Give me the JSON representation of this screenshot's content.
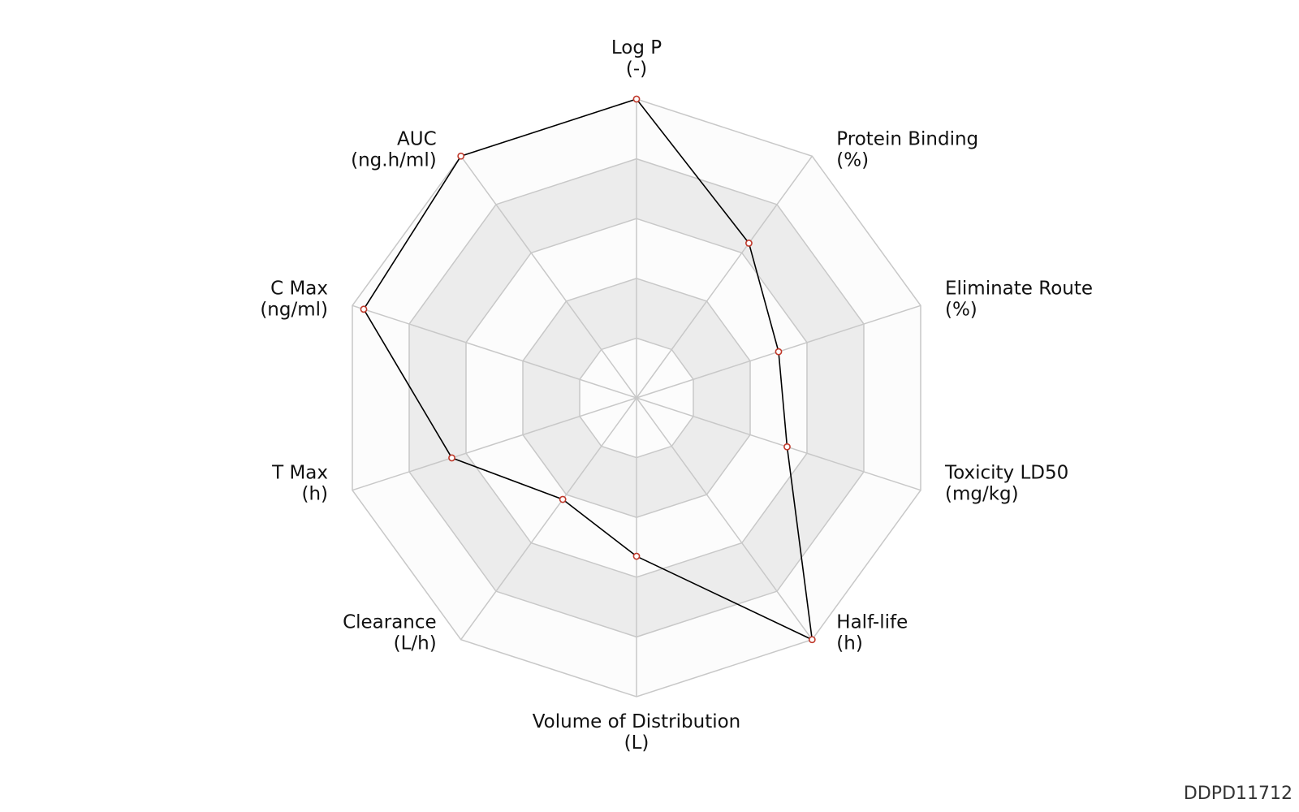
{
  "chart_data": {
    "type": "radar",
    "axes": [
      {
        "name": "Log P",
        "unit": "(-)"
      },
      {
        "name": "Protein Binding",
        "unit": "(%)"
      },
      {
        "name": "Eliminate Route",
        "unit": "(%)"
      },
      {
        "name": "Toxicity LD50",
        "unit": "(mg/kg)"
      },
      {
        "name": "Half-life",
        "unit": "(h)"
      },
      {
        "name": "Volume of Distribution",
        "unit": "(L)"
      },
      {
        "name": "Clearance",
        "unit": "(L/h)"
      },
      {
        "name": "T Max",
        "unit": "(h)"
      },
      {
        "name": "C Max",
        "unit": "(ng/ml)"
      },
      {
        "name": "AUC",
        "unit": "(ng.h/ml)"
      }
    ],
    "values": [
      1.0,
      0.64,
      0.5,
      0.53,
      1.0,
      0.53,
      0.42,
      0.65,
      0.96,
      1.0
    ],
    "range": [
      0,
      1
    ],
    "rings": 5,
    "grid": true,
    "legend": "none"
  },
  "colors": {
    "band_light": "#fcfcfc",
    "band_dark": "#ececec",
    "grid_line": "#c8c8c8",
    "series_line": "#000000",
    "marker_stroke": "#c0392b",
    "marker_fill": "#ffffff"
  },
  "watermark": "DDPD11712"
}
